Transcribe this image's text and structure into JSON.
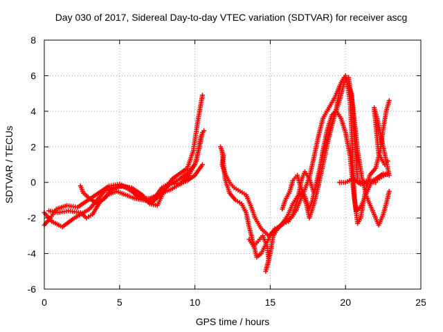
{
  "chart_data": {
    "type": "scatter",
    "title": "Day 030 of 2017, Sidereal Day-to-day VTEC variation (SDTVAR) for receiver ascg",
    "xlabel": "GPS time / hours",
    "ylabel": "SDTVAR / TECUs",
    "xlim": [
      0,
      25
    ],
    "ylim": [
      -6,
      8
    ],
    "xticks": [
      0,
      5,
      10,
      15,
      20,
      25
    ],
    "yticks": [
      -6,
      -4,
      -2,
      0,
      2,
      4,
      6,
      8
    ],
    "grid": true,
    "marker": "plus",
    "color": "#ff0000",
    "series": [
      {
        "points": [
          [
            0,
            -1.7
          ],
          [
            0.5,
            -2.2
          ],
          [
            1.2,
            -2.5
          ],
          [
            2.0,
            -2.0
          ],
          [
            3.0,
            -1.5
          ],
          [
            3.5,
            -1.0
          ],
          [
            4.0,
            -0.5
          ],
          [
            4.6,
            -0.3
          ],
          [
            5.2,
            -0.2
          ],
          [
            6.0,
            -0.6
          ],
          [
            6.8,
            -1.0
          ],
          [
            7.5,
            -0.7
          ],
          [
            8.2,
            -0.2
          ],
          [
            9.0,
            0.2
          ],
          [
            9.6,
            0.6
          ],
          [
            10.0,
            1.0
          ],
          [
            10.3,
            2.0
          ],
          [
            10.5,
            2.8
          ]
        ]
      },
      {
        "points": [
          [
            0,
            -2.4
          ],
          [
            0.4,
            -2.0
          ],
          [
            0.8,
            -1.5
          ],
          [
            1.5,
            -1.3
          ],
          [
            2.2,
            -1.4
          ],
          [
            2.9,
            -1.0
          ],
          [
            3.6,
            -0.6
          ],
          [
            4.3,
            -0.2
          ],
          [
            5.0,
            -0.1
          ],
          [
            5.6,
            -0.3
          ],
          [
            6.2,
            -0.8
          ],
          [
            6.8,
            -0.9
          ],
          [
            7.3,
            -0.9
          ],
          [
            7.8,
            -0.3
          ],
          [
            8.4,
            0.0
          ],
          [
            9.0,
            -0.1
          ],
          [
            9.5,
            0.1
          ],
          [
            10.0,
            0.4
          ],
          [
            10.5,
            1.0
          ]
        ]
      },
      {
        "points": [
          [
            0.3,
            -1.6
          ],
          [
            0.9,
            -1.7
          ],
          [
            1.6,
            -1.6
          ],
          [
            2.4,
            -1.7
          ],
          [
            2.8,
            -2.0
          ],
          [
            3.2,
            -1.8
          ],
          [
            3.7,
            -1.1
          ],
          [
            4.2,
            -0.7
          ],
          [
            4.8,
            -0.5
          ],
          [
            5.4,
            -0.7
          ],
          [
            6.0,
            -0.9
          ],
          [
            6.6,
            -1.0
          ],
          [
            7.2,
            -1.1
          ],
          [
            7.8,
            -0.6
          ],
          [
            8.4,
            -0.4
          ],
          [
            9.0,
            -0.1
          ],
          [
            9.6,
            0.4
          ],
          [
            10.1,
            1.2
          ],
          [
            10.4,
            2.6
          ],
          [
            10.6,
            2.9
          ]
        ]
      },
      {
        "points": [
          [
            2.4,
            -0.2
          ],
          [
            2.6,
            -0.6
          ],
          [
            3.0,
            -0.9
          ],
          [
            3.5,
            -1.2
          ],
          [
            4.0,
            -0.9
          ],
          [
            4.5,
            -0.4
          ],
          [
            5.0,
            -0.2
          ],
          [
            5.8,
            -0.3
          ],
          [
            6.5,
            -0.7
          ],
          [
            7.0,
            -1.2
          ],
          [
            7.5,
            -1.3
          ],
          [
            8.0,
            -0.4
          ],
          [
            8.5,
            0.2
          ],
          [
            9.0,
            0.5
          ],
          [
            9.5,
            0.8
          ],
          [
            9.9,
            1.8
          ],
          [
            10.2,
            3.5
          ],
          [
            10.5,
            4.9
          ]
        ]
      },
      {
        "points": [
          [
            11.7,
            2.0
          ],
          [
            11.9,
            1.5
          ],
          [
            11.8,
            1.0
          ],
          [
            12.0,
            0.5
          ],
          [
            12.3,
            0.0
          ],
          [
            12.6,
            -0.3
          ],
          [
            13.0,
            -0.5
          ],
          [
            13.4,
            -0.7
          ],
          [
            13.7,
            -1.3
          ],
          [
            14.0,
            -2.0
          ],
          [
            14.4,
            -2.6
          ],
          [
            14.9,
            -3.0
          ],
          [
            15.3,
            -2.7
          ],
          [
            15.7,
            -2.4
          ],
          [
            16.0,
            -2.2
          ],
          [
            16.4,
            -2.0
          ],
          [
            16.7,
            -1.6
          ],
          [
            17.0,
            -1.0
          ],
          [
            17.3,
            -0.4
          ],
          [
            17.6,
            0.3
          ],
          [
            17.9,
            1.4
          ],
          [
            18.2,
            2.6
          ],
          [
            18.5,
            3.6
          ],
          [
            18.9,
            4.2
          ],
          [
            19.3,
            4.8
          ],
          [
            19.6,
            5.4
          ],
          [
            19.9,
            5.9
          ],
          [
            20.1,
            5.7
          ],
          [
            20.3,
            4.5
          ],
          [
            20.4,
            3.0
          ],
          [
            20.5,
            0.6
          ],
          [
            20.6,
            -1.0
          ],
          [
            20.8,
            -2.3
          ],
          [
            21.0,
            -2.0
          ],
          [
            21.3,
            -0.6
          ],
          [
            21.6,
            0.4
          ],
          [
            22.0,
            0.8
          ],
          [
            22.3,
            1.8
          ],
          [
            22.5,
            3.0
          ],
          [
            22.7,
            4.0
          ],
          [
            22.9,
            4.6
          ]
        ]
      },
      {
        "points": [
          [
            11.8,
            1.8
          ],
          [
            12.0,
            0.2
          ],
          [
            12.3,
            -0.6
          ],
          [
            12.7,
            -1.0
          ],
          [
            13.1,
            -1.2
          ],
          [
            13.4,
            -1.7
          ],
          [
            13.6,
            -2.5
          ],
          [
            13.9,
            -3.5
          ],
          [
            14.1,
            -4.2
          ],
          [
            14.4,
            -4.0
          ],
          [
            14.7,
            -3.5
          ],
          [
            15.0,
            -3.0
          ],
          [
            15.3,
            -2.6
          ],
          [
            15.6,
            -2.5
          ],
          [
            15.9,
            -2.3
          ],
          [
            16.2,
            -2.2
          ],
          [
            16.5,
            -1.8
          ],
          [
            16.8,
            -1.0
          ],
          [
            17.1,
            0.2
          ],
          [
            17.3,
            0.6
          ],
          [
            17.6,
            0.2
          ],
          [
            17.9,
            -0.6
          ],
          [
            18.2,
            0.2
          ],
          [
            18.5,
            1.8
          ],
          [
            18.8,
            3.0
          ],
          [
            19.1,
            3.8
          ],
          [
            19.4,
            4.0
          ],
          [
            19.7,
            3.6
          ],
          [
            20.0,
            2.8
          ],
          [
            20.3,
            1.5
          ],
          [
            20.5,
            -0.3
          ],
          [
            20.7,
            -1.6
          ],
          [
            21.0,
            -1.4
          ],
          [
            21.3,
            -0.8
          ],
          [
            21.7,
            0.0
          ],
          [
            22.0,
            0.1
          ],
          [
            22.4,
            0.3
          ],
          [
            22.8,
            0.5
          ]
        ]
      },
      {
        "points": [
          [
            13.6,
            -3.2
          ],
          [
            13.9,
            -3.6
          ],
          [
            14.2,
            -3.3
          ],
          [
            14.5,
            -3.0
          ],
          [
            14.8,
            -3.6
          ],
          [
            14.9,
            -4.4
          ],
          [
            14.7,
            -5.0
          ],
          [
            15.0,
            -4.0
          ],
          [
            15.2,
            -3.0
          ],
          [
            15.5,
            -2.6
          ],
          [
            15.9,
            -2.2
          ],
          [
            16.2,
            -1.8
          ],
          [
            16.5,
            -1.2
          ],
          [
            16.8,
            -0.8
          ],
          [
            17.1,
            -0.6
          ],
          [
            17.4,
            -1.2
          ],
          [
            17.6,
            -2.0
          ],
          [
            17.9,
            -1.2
          ],
          [
            18.2,
            -0.2
          ],
          [
            18.5,
            1.0
          ],
          [
            18.8,
            2.2
          ],
          [
            19.1,
            3.2
          ],
          [
            19.4,
            4.2
          ],
          [
            19.7,
            5.6
          ],
          [
            20.0,
            6.0
          ],
          [
            20.2,
            5.4
          ],
          [
            20.4,
            5.0
          ],
          [
            20.6,
            2.6
          ],
          [
            20.8,
            0.1
          ],
          [
            21.1,
            0.0
          ],
          [
            21.5,
            0.1
          ],
          [
            22.0,
            0.0
          ]
        ]
      },
      {
        "points": [
          [
            15.8,
            -1.5
          ],
          [
            16.0,
            -1.0
          ],
          [
            16.3,
            -0.5
          ],
          [
            16.5,
            0.1
          ],
          [
            16.8,
            0.4
          ],
          [
            17.0,
            -0.2
          ],
          [
            17.3,
            -0.8
          ],
          [
            17.6,
            -1.5
          ],
          [
            17.8,
            -1.0
          ],
          [
            18.1,
            0.1
          ],
          [
            18.4,
            1.2
          ],
          [
            18.7,
            2.2
          ],
          [
            19.0,
            3.2
          ],
          [
            19.3,
            3.8
          ],
          [
            19.6,
            4.6
          ],
          [
            19.9,
            5.6
          ],
          [
            20.2,
            5.9
          ],
          [
            20.5,
            4.2
          ],
          [
            20.8,
            1.8
          ],
          [
            21.1,
            0.2
          ],
          [
            21.4,
            -0.8
          ],
          [
            21.8,
            -1.6
          ],
          [
            22.2,
            -2.4
          ],
          [
            22.5,
            -1.8
          ],
          [
            22.7,
            -1.2
          ],
          [
            22.9,
            -0.5
          ]
        ]
      },
      {
        "points": [
          [
            19.6,
            0.0
          ],
          [
            20.0,
            0.0
          ],
          [
            20.5,
            0.2
          ],
          [
            21.0,
            -0.1
          ],
          [
            21.5,
            0.0
          ],
          [
            22.0,
            0.2
          ],
          [
            22.5,
            0.5
          ],
          [
            22.9,
            0.4
          ],
          [
            22.7,
            1.2
          ],
          [
            22.5,
            2.0
          ],
          [
            22.3,
            2.8
          ],
          [
            22.1,
            3.6
          ],
          [
            21.9,
            4.2
          ],
          [
            22.2,
            1.6
          ],
          [
            22.6,
            1.0
          ],
          [
            22.8,
            1.2
          ]
        ]
      }
    ]
  }
}
